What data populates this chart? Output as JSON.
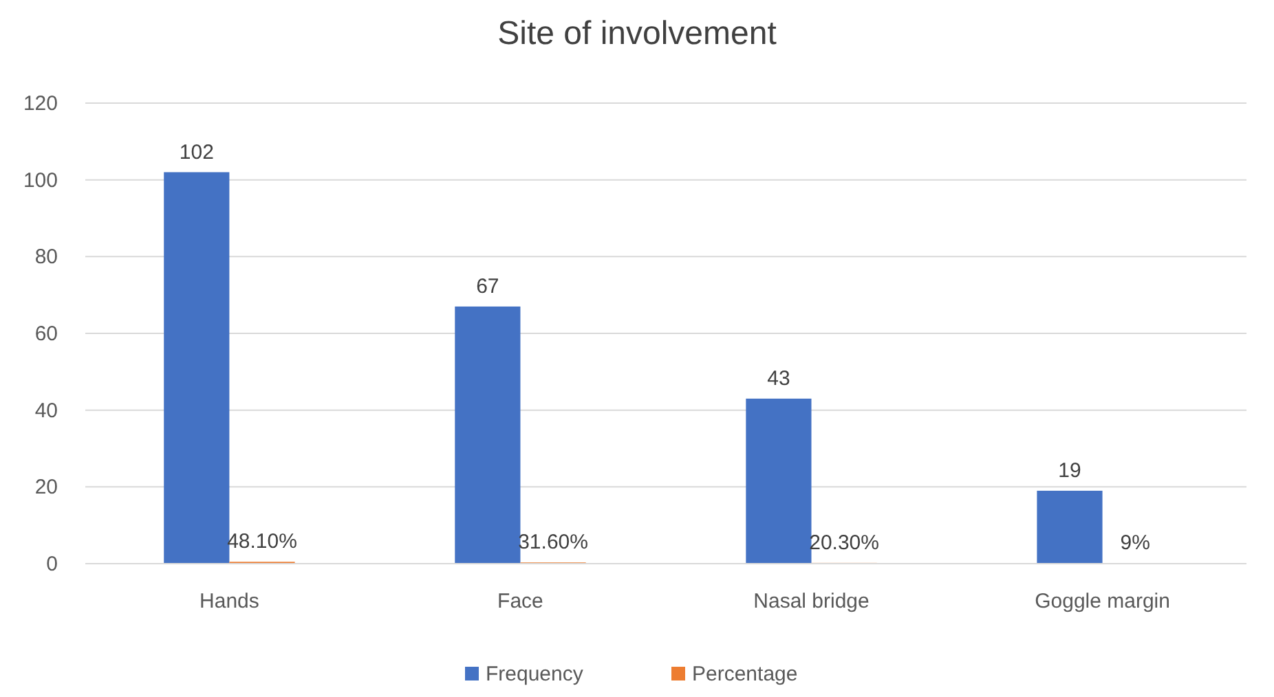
{
  "chart_data": {
    "type": "bar",
    "title": "Site of involvement",
    "categories": [
      "Hands",
      "Face",
      "Nasal bridge",
      "Goggle margin"
    ],
    "series": [
      {
        "name": "Frequency",
        "color": "#4472c4",
        "values": [
          102,
          67,
          43,
          19
        ],
        "value_labels": [
          "102",
          "67",
          "43",
          "19"
        ]
      },
      {
        "name": "Percentage",
        "color": "#ed7d31",
        "values": [
          0.481,
          0.316,
          0.203,
          0.09
        ],
        "value_labels": [
          "48.10%",
          "31.60%",
          "20.30%",
          "9%"
        ]
      }
    ],
    "ylim": [
      0,
      120
    ],
    "yticks": [
      0,
      20,
      40,
      60,
      80,
      100,
      120
    ],
    "grid": "y",
    "legend": "bottom"
  }
}
